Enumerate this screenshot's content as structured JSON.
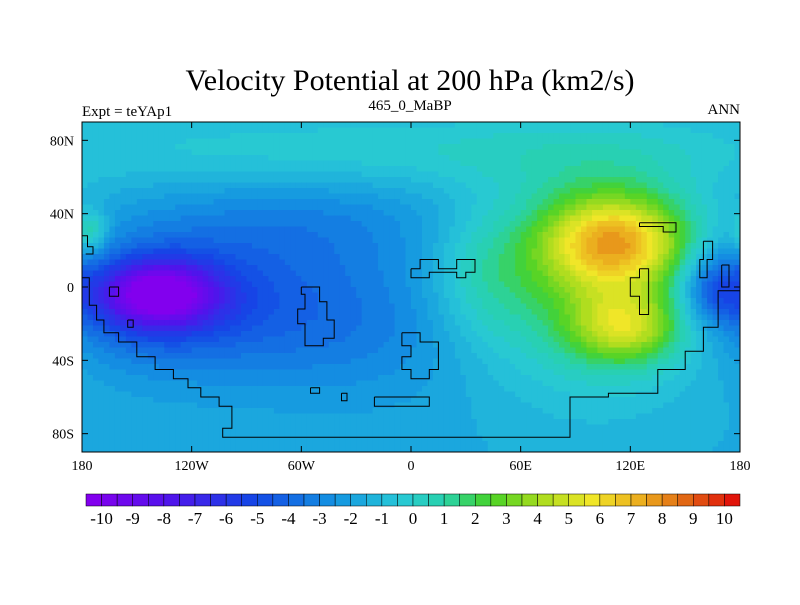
{
  "chart_data": {
    "type": "heatmap",
    "title": "Velocity Potential at 200 hPa (km2/s)",
    "left_label": "Expt = teYAp1",
    "center_label": "465_0_MaBP",
    "right_label": "ANN",
    "x_ticks": [
      {
        "value": -180,
        "label": "180"
      },
      {
        "value": -120,
        "label": "120W"
      },
      {
        "value": -60,
        "label": "60W"
      },
      {
        "value": 0,
        "label": "0"
      },
      {
        "value": 60,
        "label": "60E"
      },
      {
        "value": 120,
        "label": "120E"
      },
      {
        "value": 180,
        "label": "180"
      }
    ],
    "y_ticks": [
      {
        "value": 80,
        "label": "80N"
      },
      {
        "value": 40,
        "label": "40N"
      },
      {
        "value": 0,
        "label": "0"
      },
      {
        "value": -40,
        "label": "40S"
      },
      {
        "value": -80,
        "label": "80S"
      }
    ],
    "xlim": [
      -180,
      180
    ],
    "ylim": [
      -90,
      90
    ],
    "colorbar": {
      "min": -10.5,
      "max": 10.5,
      "step": 0.5,
      "labels": [
        "-10",
        "-9",
        "-8",
        "-7",
        "-6",
        "-5",
        "-4",
        "-3",
        "-2",
        "-1",
        "0",
        "1",
        "2",
        "3",
        "4",
        "5",
        "6",
        "7",
        "8",
        "9",
        "10"
      ],
      "label_values": [
        -10,
        -9,
        -8,
        -7,
        -6,
        -5,
        -4,
        -3,
        -2,
        -1,
        0,
        1,
        2,
        3,
        4,
        5,
        6,
        7,
        8,
        9,
        10
      ]
    },
    "field_blobs": [
      {
        "lon": -138,
        "lat": -4,
        "amp": -7.0,
        "sx": 22,
        "sy": 12
      },
      {
        "lon": -150,
        "lat": -6,
        "amp": -2.5,
        "sx": 40,
        "sy": 24
      },
      {
        "lon": -95,
        "lat": -10,
        "amp": -2.0,
        "sx": 50,
        "sy": 28
      },
      {
        "lon": -60,
        "lat": 35,
        "amp": -1.2,
        "sx": 60,
        "sy": 18
      },
      {
        "lon": -20,
        "lat": -20,
        "amp": -1.2,
        "sx": 45,
        "sy": 30
      },
      {
        "lon": 112,
        "lat": 25,
        "amp": 6.5,
        "sx": 28,
        "sy": 18
      },
      {
        "lon": 118,
        "lat": -22,
        "amp": 4.5,
        "sx": 22,
        "sy": 14
      },
      {
        "lon": 100,
        "lat": 5,
        "amp": 3.5,
        "sx": 45,
        "sy": 42
      },
      {
        "lon": 165,
        "lat": 0,
        "amp": -3.0,
        "sx": 12,
        "sy": 14
      },
      {
        "lon": 40,
        "lat": 5,
        "amp": 1.5,
        "sx": 20,
        "sy": 25
      },
      {
        "lon": 0,
        "lat": 75,
        "amp": 1.5,
        "sx": 180,
        "sy": 15
      },
      {
        "lon": -175,
        "lat": 30,
        "amp": 2.5,
        "sx": 6,
        "sy": 8
      }
    ],
    "coastlines": [
      [
        [
          -180,
          5
        ],
        [
          -176,
          5
        ],
        [
          -176,
          -10
        ],
        [
          -172,
          -10
        ],
        [
          -172,
          -18
        ],
        [
          -168,
          -18
        ],
        [
          -168,
          -25
        ],
        [
          -160,
          -25
        ],
        [
          -160,
          -30
        ],
        [
          -150,
          -30
        ],
        [
          -150,
          -38
        ],
        [
          -140,
          -38
        ],
        [
          -140,
          -45
        ],
        [
          -130,
          -45
        ],
        [
          -130,
          -50
        ],
        [
          -122,
          -50
        ],
        [
          -122,
          -55
        ],
        [
          -115,
          -55
        ],
        [
          -115,
          -60
        ],
        [
          -105,
          -60
        ],
        [
          -105,
          -65
        ],
        [
          -98,
          -65
        ],
        [
          -98,
          -77
        ],
        [
          -103,
          -77
        ],
        [
          -103,
          -82
        ],
        [
          87,
          -82
        ],
        [
          87,
          -60
        ],
        [
          108,
          -60
        ],
        [
          108,
          -58
        ],
        [
          135,
          -58
        ],
        [
          135,
          -45
        ],
        [
          150,
          -45
        ],
        [
          150,
          -35
        ],
        [
          160,
          -35
        ],
        [
          160,
          -22
        ],
        [
          168,
          -22
        ],
        [
          168,
          -2
        ],
        [
          180,
          -2
        ]
      ],
      [
        [
          -180,
          28
        ],
        [
          -177,
          28
        ],
        [
          -177,
          22
        ],
        [
          -174,
          22
        ],
        [
          -174,
          18
        ],
        [
          -178,
          18
        ]
      ],
      [
        [
          -165,
          0
        ],
        [
          -160,
          0
        ],
        [
          -160,
          -5
        ],
        [
          -165,
          -5
        ],
        [
          -165,
          0
        ]
      ],
      [
        [
          -155,
          -18
        ],
        [
          -152,
          -18
        ],
        [
          -152,
          -22
        ],
        [
          -155,
          -22
        ],
        [
          -155,
          -18
        ]
      ],
      [
        [
          -60,
          0
        ],
        [
          -50,
          0
        ],
        [
          -50,
          -8
        ],
        [
          -46,
          -8
        ],
        [
          -46,
          -18
        ],
        [
          -42,
          -18
        ],
        [
          -42,
          -28
        ],
        [
          -48,
          -28
        ],
        [
          -48,
          -32
        ],
        [
          -58,
          -32
        ],
        [
          -58,
          -20
        ],
        [
          -62,
          -20
        ],
        [
          -62,
          -12
        ],
        [
          -58,
          -12
        ],
        [
          -58,
          -4
        ],
        [
          -60,
          -4
        ],
        [
          -60,
          0
        ]
      ],
      [
        [
          -55,
          -55
        ],
        [
          -50,
          -55
        ],
        [
          -50,
          -58
        ],
        [
          -55,
          -58
        ],
        [
          -55,
          -55
        ]
      ],
      [
        [
          -38,
          -58
        ],
        [
          -35,
          -58
        ],
        [
          -35,
          -62
        ],
        [
          -38,
          -62
        ],
        [
          -38,
          -58
        ]
      ],
      [
        [
          -20,
          -60
        ],
        [
          10,
          -60
        ],
        [
          10,
          -65
        ],
        [
          -20,
          -65
        ],
        [
          -20,
          -60
        ]
      ],
      [
        [
          -5,
          -25
        ],
        [
          5,
          -25
        ],
        [
          5,
          -30
        ],
        [
          15,
          -30
        ],
        [
          15,
          -45
        ],
        [
          10,
          -45
        ],
        [
          10,
          -50
        ],
        [
          0,
          -50
        ],
        [
          0,
          -45
        ],
        [
          -5,
          -45
        ],
        [
          -5,
          -38
        ],
        [
          0,
          -38
        ],
        [
          0,
          -32
        ],
        [
          -5,
          -32
        ],
        [
          -5,
          -25
        ]
      ],
      [
        [
          0,
          10
        ],
        [
          5,
          10
        ],
        [
          5,
          15
        ],
        [
          15,
          15
        ],
        [
          15,
          10
        ],
        [
          25,
          10
        ],
        [
          25,
          15
        ],
        [
          35,
          15
        ],
        [
          35,
          8
        ],
        [
          30,
          8
        ],
        [
          30,
          5
        ],
        [
          25,
          5
        ],
        [
          25,
          8
        ],
        [
          10,
          8
        ],
        [
          10,
          5
        ],
        [
          0,
          5
        ],
        [
          0,
          10
        ]
      ],
      [
        [
          125,
          35
        ],
        [
          145,
          35
        ],
        [
          145,
          30
        ],
        [
          138,
          30
        ],
        [
          138,
          33
        ],
        [
          125,
          33
        ],
        [
          125,
          35
        ]
      ],
      [
        [
          125,
          10
        ],
        [
          130,
          10
        ],
        [
          130,
          -15
        ],
        [
          125,
          -15
        ],
        [
          125,
          -5
        ],
        [
          120,
          -5
        ],
        [
          120,
          5
        ],
        [
          125,
          5
        ],
        [
          125,
          10
        ]
      ],
      [
        [
          160,
          25
        ],
        [
          165,
          25
        ],
        [
          165,
          15
        ],
        [
          162,
          15
        ],
        [
          162,
          5
        ],
        [
          158,
          5
        ],
        [
          158,
          15
        ],
        [
          160,
          15
        ],
        [
          160,
          25
        ]
      ],
      [
        [
          170,
          12
        ],
        [
          174,
          12
        ],
        [
          174,
          0
        ],
        [
          170,
          0
        ],
        [
          170,
          12
        ]
      ]
    ]
  }
}
